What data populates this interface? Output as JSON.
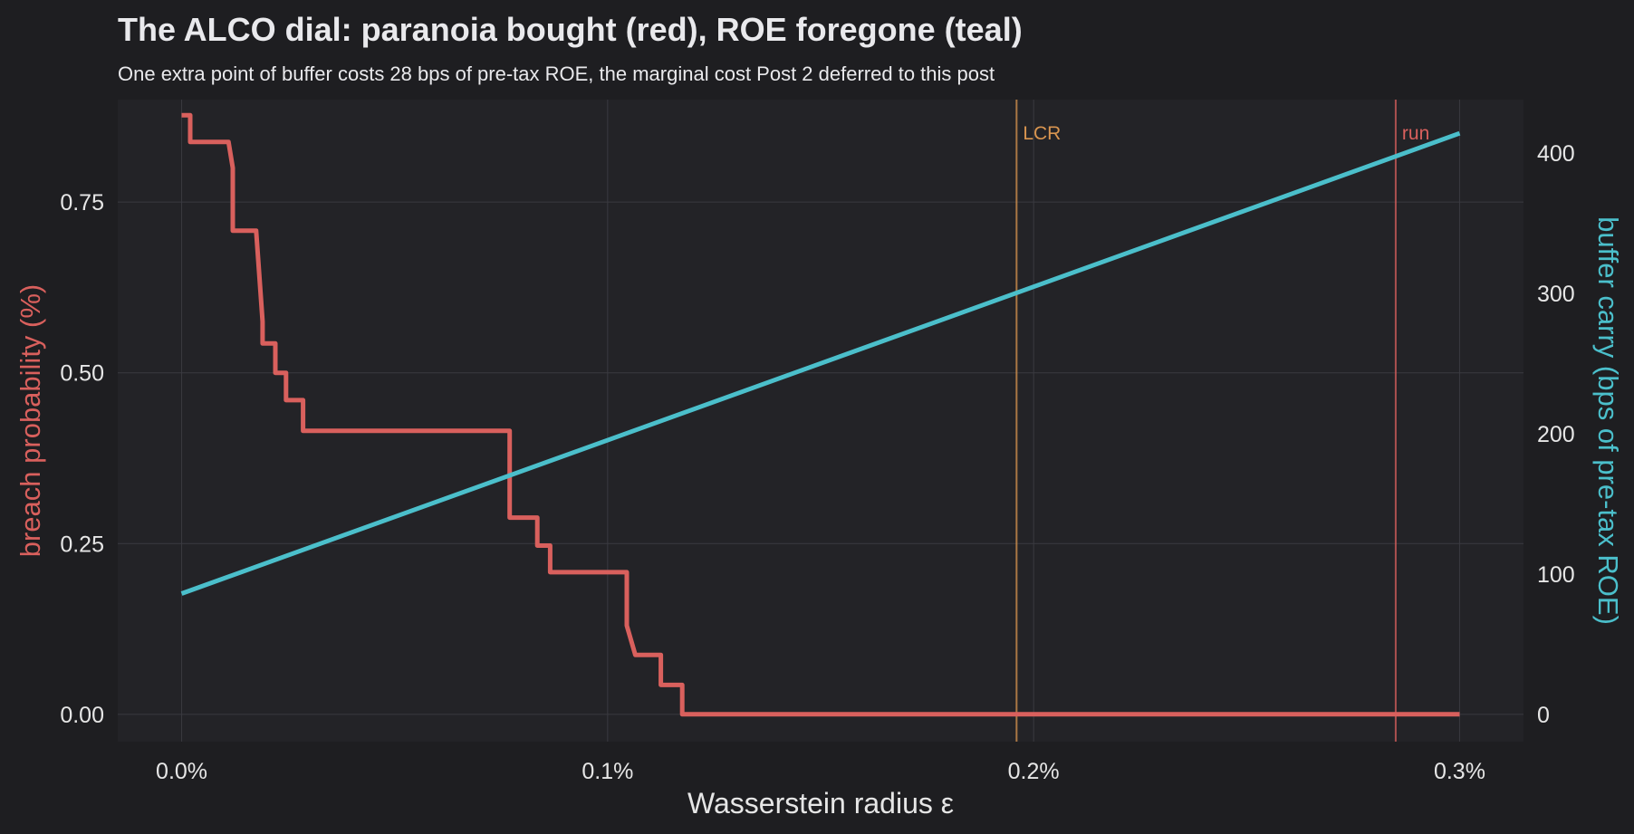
{
  "chart_data": {
    "type": "line",
    "title": "The ALCO dial: paranoia bought (red), ROE foregone (teal)",
    "subtitle": "One extra point of buffer costs 28 bps of pre-tax ROE, the marginal cost Post 2 deferred to this post",
    "xlabel": "Wasserstein radius ε",
    "ylabel_left": "breach probability (%)",
    "ylabel_right": "buffer carry (bps of pre-tax ROE)",
    "xlim": [
      -0.00015,
      0.00315
    ],
    "ylim_left": [
      -0.04,
      0.9
    ],
    "ylim_right": [
      -19.5,
      438
    ],
    "x_ticks": [
      {
        "value": 0.0,
        "label": "0.0%"
      },
      {
        "value": 0.001,
        "label": "0.1%"
      },
      {
        "value": 0.002,
        "label": "0.2%"
      },
      {
        "value": 0.003,
        "label": "0.3%"
      }
    ],
    "y_left_ticks": [
      {
        "value": 0.0,
        "label": "0.00"
      },
      {
        "value": 0.25,
        "label": "0.25"
      },
      {
        "value": 0.5,
        "label": "0.50"
      },
      {
        "value": 0.75,
        "label": "0.75"
      }
    ],
    "y_right_ticks": [
      {
        "value": 0,
        "label": "0"
      },
      {
        "value": 100,
        "label": "100"
      },
      {
        "value": 200,
        "label": "200"
      },
      {
        "value": 300,
        "label": "300"
      },
      {
        "value": 400,
        "label": "400"
      }
    ],
    "grid": true,
    "series": [
      {
        "name": "breach probability",
        "axis": "left",
        "color": "#d9605d",
        "shape": "step",
        "x": [
          0.0,
          2e-05,
          2e-05,
          0.00011,
          0.00012,
          0.00012,
          0.000175,
          0.00019,
          0.00019,
          0.00022,
          0.00022,
          0.000245,
          0.000245,
          0.00025,
          0.00025,
          0.000285,
          0.000285,
          0.0003,
          0.0003,
          0.00077,
          0.00077,
          0.000835,
          0.000835,
          0.000865,
          0.000865,
          0.000885,
          0.000885,
          0.001045,
          0.001045,
          0.001065,
          0.001065,
          0.001125,
          0.001125,
          0.001175,
          0.001175,
          0.003
        ],
        "y": [
          0.877,
          0.877,
          0.838,
          0.838,
          0.8,
          0.708,
          0.708,
          0.575,
          0.543,
          0.543,
          0.5,
          0.5,
          0.46,
          0.46,
          0.46,
          0.46,
          0.415,
          0.415,
          0.415,
          0.415,
          0.288,
          0.288,
          0.247,
          0.247,
          0.208,
          0.208,
          0.208,
          0.208,
          0.13,
          0.087,
          0.087,
          0.087,
          0.043,
          0.043,
          0.0,
          0.0
        ]
      },
      {
        "name": "buffer carry",
        "axis": "right",
        "color": "#4bbfcb",
        "shape": "line",
        "x": [
          0.0,
          0.003
        ],
        "y": [
          86,
          414
        ]
      }
    ],
    "annotations": [
      {
        "label": "LCR",
        "x": 0.00196,
        "color": "#d99550"
      },
      {
        "label": "run",
        "x": 0.00285,
        "color": "#d9605d"
      }
    ]
  },
  "colors": {
    "background": "#1e1e21",
    "panel": "#232327",
    "grid": "#3a3a40"
  }
}
